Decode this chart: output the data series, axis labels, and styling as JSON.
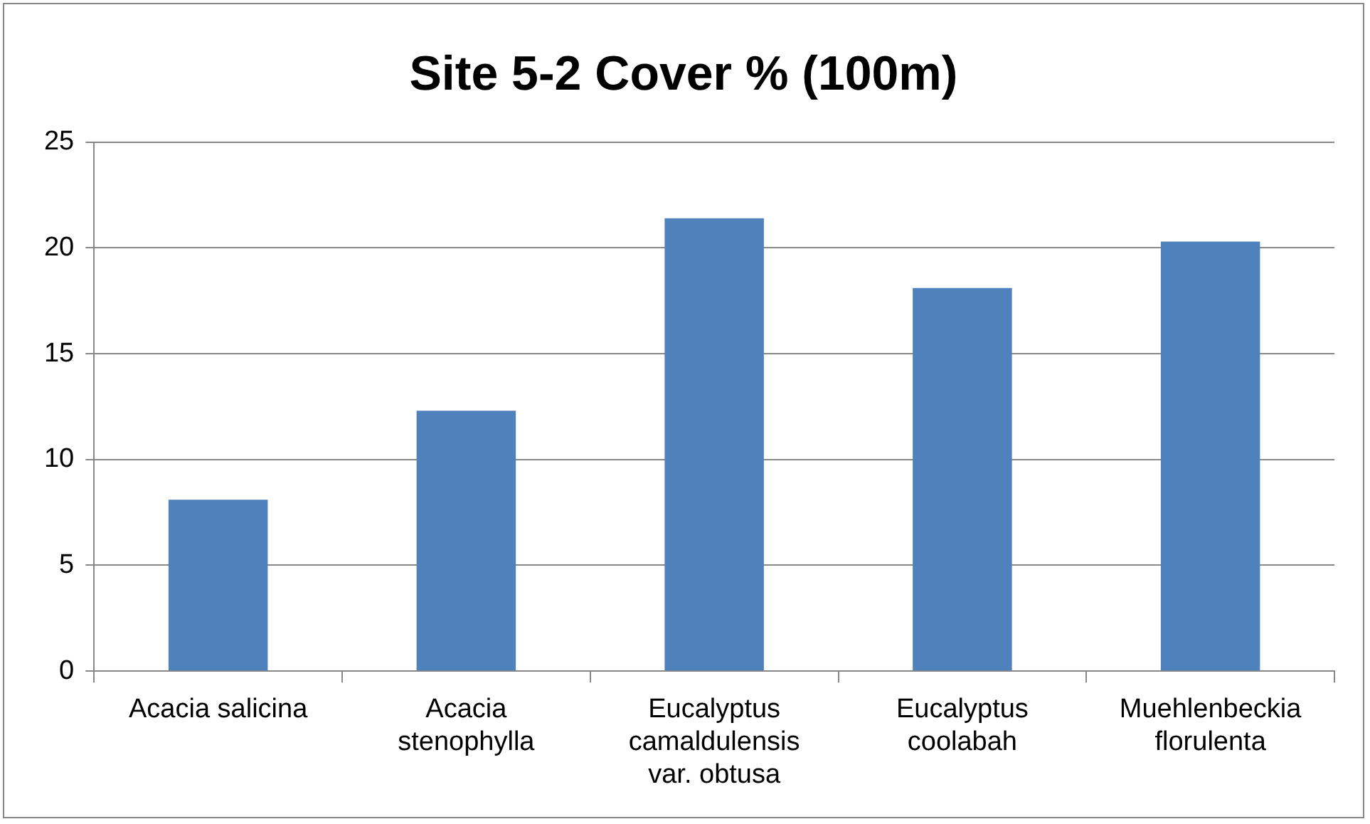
{
  "chart_data": {
    "type": "bar",
    "title": "Site 5-2 Cover % (100m)",
    "categories": [
      "Acacia salicina",
      "Acacia stenophylla",
      "Eucalyptus camaldulensis var. obtusa",
      "Eucalyptus coolabah",
      "Muehlenbeckia florulenta"
    ],
    "values": [
      8.1,
      12.3,
      21.4,
      18.1,
      20.3
    ],
    "color": "#4f81bd",
    "ylim": [
      0,
      25
    ],
    "yticks": [
      0,
      5,
      10,
      15,
      20,
      25
    ],
    "grid": "y"
  }
}
